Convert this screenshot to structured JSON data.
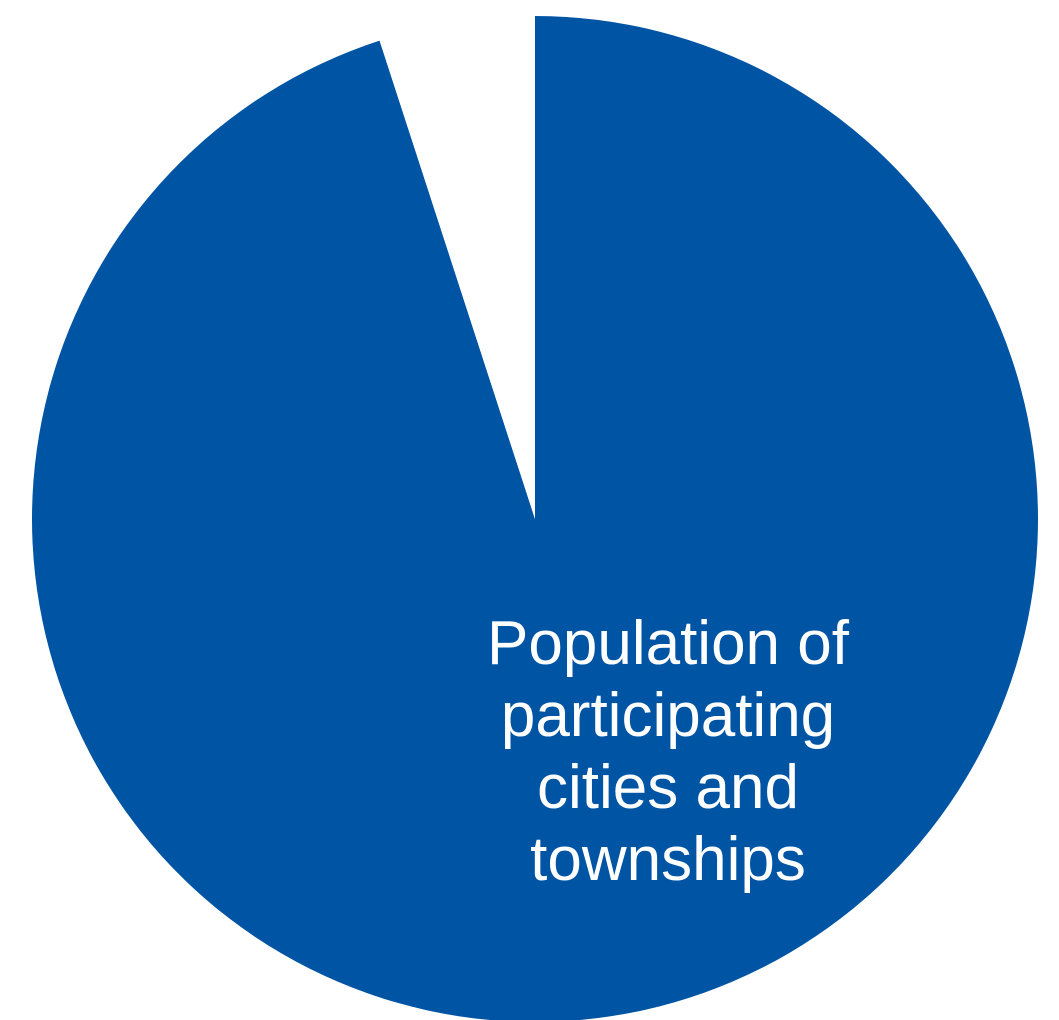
{
  "chart_data": {
    "type": "pie",
    "title": "",
    "slices": [
      {
        "label": "Population of participating cities and townships",
        "label_lines": [
          "Population of",
          "participating",
          "cities and",
          "townships"
        ],
        "value": 95.0,
        "color": "#0054A4",
        "label_color": "#ffffff"
      },
      {
        "label": "",
        "label_lines": [],
        "value": 5.0,
        "color": "#ffffff",
        "label_color": "#ffffff"
      }
    ],
    "start_angle_deg": 0,
    "direction": "clockwise",
    "legend": "none"
  }
}
